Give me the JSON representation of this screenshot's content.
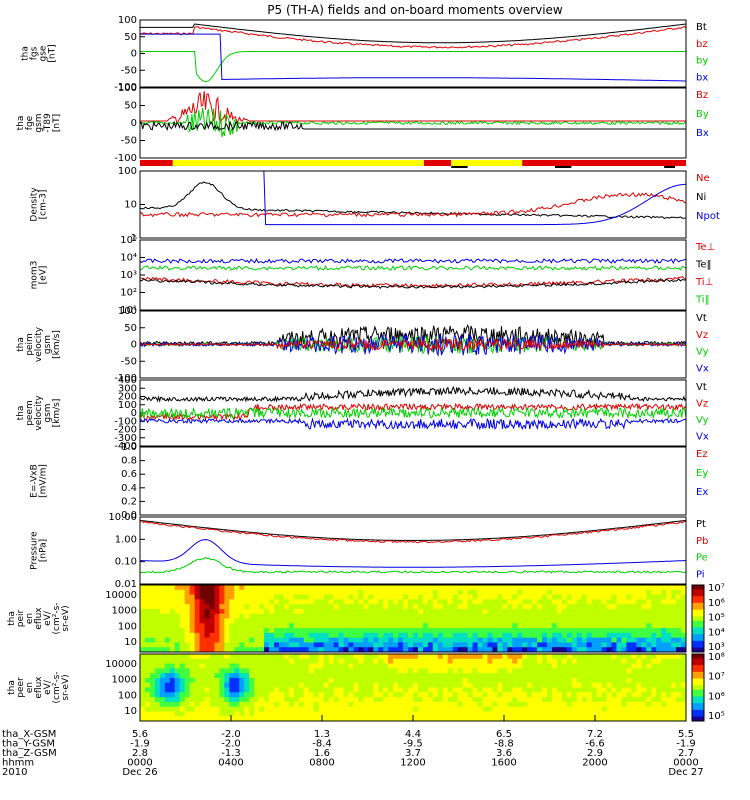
{
  "title": "P5 (TH-A) fields and on-board moments overview",
  "colors": {
    "black": "#000000",
    "red": "#e00000",
    "green": "#00d000",
    "blue": "#0000e0",
    "yellow": "#ffff00"
  },
  "chart_data": [
    {
      "type": "line",
      "id": "fgs_gse",
      "ylabel": [
        "tha",
        "fgs",
        "gse",
        "[nT]"
      ],
      "ylim": [
        -100,
        100
      ],
      "yticks": [
        100,
        50,
        0,
        -50,
        -100
      ],
      "legend": [
        {
          "name": "Bt",
          "color": "black"
        },
        {
          "name": "bz",
          "color": "red"
        },
        {
          "name": "by",
          "color": "green"
        },
        {
          "name": "bx",
          "color": "blue"
        }
      ]
    },
    {
      "type": "line",
      "id": "fge_gsm",
      "ylabel": [
        "tha",
        "fge",
        "gsm",
        "-T89",
        "[nT]"
      ],
      "ylim": [
        -120,
        120
      ],
      "yticks": [
        100,
        50,
        0,
        -50,
        -100
      ],
      "legend": [
        {
          "name": "Bz",
          "color": "red"
        },
        {
          "name": "By",
          "color": "green"
        },
        {
          "name": "Bx",
          "color": "blue"
        }
      ]
    },
    {
      "type": "line",
      "id": "density",
      "ylabel": [
        "Density",
        "[cm-3]"
      ],
      "scale": "log",
      "ylim": [
        0.1,
        100
      ],
      "yticks": [
        "100",
        "10",
        "1"
      ],
      "legend": [
        {
          "name": "Ne",
          "color": "red"
        },
        {
          "name": "Ni",
          "color": "black"
        },
        {
          "name": "Npot",
          "color": "blue"
        }
      ]
    },
    {
      "type": "line",
      "id": "temperature",
      "ylabel": [
        "mom3",
        "[eV]"
      ],
      "scale": "log",
      "ylim": [
        10,
        100000
      ],
      "yticks": [
        "10⁵",
        "10⁴",
        "10³",
        "10²",
        "10¹"
      ],
      "legend": [
        {
          "name": "Te⊥",
          "color": "red"
        },
        {
          "name": "Te‖",
          "color": "black"
        },
        {
          "name": "Ti⊥",
          "color": "red"
        },
        {
          "name": "Ti‖",
          "color": "green"
        }
      ]
    },
    {
      "type": "line",
      "id": "peim_velocity",
      "ylabel": [
        "tha",
        "peim",
        "velocity",
        "gsm",
        "[km/s]"
      ],
      "ylim": [
        -100,
        100
      ],
      "yticks": [
        100,
        50,
        0,
        -50,
        -100
      ],
      "legend": [
        {
          "name": "Vt",
          "color": "black"
        },
        {
          "name": "Vz",
          "color": "red"
        },
        {
          "name": "Vy",
          "color": "green"
        },
        {
          "name": "Vx",
          "color": "blue"
        }
      ]
    },
    {
      "type": "line",
      "id": "peem_velocity",
      "ylabel": [
        "tha",
        "peem",
        "velocity",
        "gsm",
        "[km/s]"
      ],
      "ylim": [
        -400,
        400
      ],
      "yticks": [
        400,
        300,
        200,
        100,
        0,
        -100,
        -200,
        -300,
        -400
      ],
      "legend": [
        {
          "name": "Vt",
          "color": "black"
        },
        {
          "name": "Vz",
          "color": "red"
        },
        {
          "name": "Vy",
          "color": "green"
        },
        {
          "name": "Vx",
          "color": "blue"
        }
      ]
    },
    {
      "type": "line",
      "id": "efield",
      "ylabel": [
        "E=-VxB",
        "[mV/m]"
      ],
      "ylim": [
        0,
        1
      ],
      "yticks": [
        "1.0",
        "0.8",
        "0.6",
        "0.4",
        "0.2",
        "0.0"
      ],
      "legend": [
        {
          "name": "Ez",
          "color": "red"
        },
        {
          "name": "Ey",
          "color": "green"
        },
        {
          "name": "Ex",
          "color": "blue"
        }
      ]
    },
    {
      "type": "line",
      "id": "pressure",
      "ylabel": [
        "Pressure",
        "[nPa]"
      ],
      "scale": "log",
      "ylim": [
        0.006,
        25
      ],
      "yticks": [
        "10.00",
        "1.00",
        "0.10",
        "0.01"
      ],
      "legend": [
        {
          "name": "Pt",
          "color": "black"
        },
        {
          "name": "Pb",
          "color": "red"
        },
        {
          "name": "Pe",
          "color": "green"
        },
        {
          "name": "Pi",
          "color": "blue"
        }
      ]
    },
    {
      "type": "heatmap",
      "id": "peir_eflux",
      "ylabel": [
        "tha",
        "peir",
        "en",
        "eflux",
        "eV/",
        "(cm²-s-",
        "sr-eV)"
      ],
      "scale": "log",
      "yticks": [
        "10000",
        "1000",
        "100",
        "10"
      ],
      "colorbar": [
        "10⁷",
        "10⁶",
        "10⁵",
        "10⁴",
        "10³"
      ]
    },
    {
      "type": "heatmap",
      "id": "peer_eflux",
      "ylabel": [
        "tha",
        "peer",
        "en",
        "eflux",
        "eV/",
        "(cm²-s-",
        "sr-eV)"
      ],
      "scale": "log",
      "yticks": [
        "10000",
        "1000",
        "100",
        "10"
      ],
      "colorbar": [
        "10⁸",
        "10⁷",
        "10⁶",
        "10⁵"
      ]
    }
  ],
  "x_axis": {
    "rows": [
      {
        "label": "tha_X-GSM",
        "values": [
          "5.6",
          "-2.0",
          "1.3",
          "4.4",
          "6.5",
          "7.2",
          "5.5"
        ]
      },
      {
        "label": "tha_Y-GSM",
        "values": [
          "-1.9",
          "-2.0",
          "-8.4",
          "-9.5",
          "-8.8",
          "-6.6",
          "-1.9"
        ]
      },
      {
        "label": "tha_Z-GSM",
        "values": [
          "2.8",
          "-1.3",
          "1.6",
          "3.7",
          "3.6",
          "2.9",
          "2.7"
        ]
      },
      {
        "label": "hhmm",
        "values": [
          "0000",
          "0400",
          "0800",
          "1200",
          "1600",
          "2000",
          "0000"
        ]
      },
      {
        "label": "2010",
        "values": [
          "Dec 26",
          "",
          "",
          "",
          "",
          "",
          "Dec 27"
        ]
      }
    ]
  }
}
